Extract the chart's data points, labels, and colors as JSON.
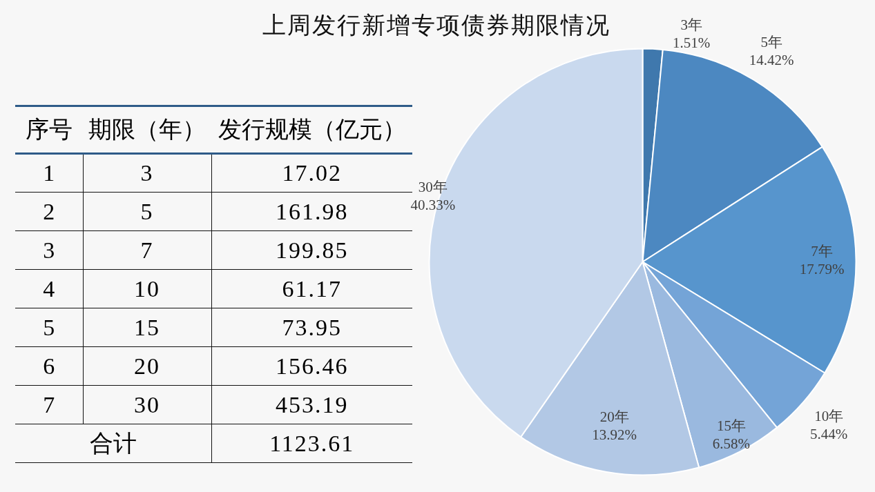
{
  "chart_data": {
    "type": "pie",
    "title": "上周发行新增专项债券期限情况",
    "categories": [
      "3年",
      "5年",
      "7年",
      "10年",
      "15年",
      "20年",
      "30年"
    ],
    "values": [
      1.51,
      14.42,
      17.79,
      5.44,
      6.58,
      13.92,
      40.33
    ],
    "value_labels": [
      "1.51%",
      "14.42%",
      "17.79%",
      "5.44%",
      "6.58%",
      "13.92%",
      "40.33%"
    ],
    "colors": [
      "#3f78ad",
      "#4c88c1",
      "#5795cd",
      "#74a4d7",
      "#9ab9df",
      "#b2c8e5",
      "#c9d9ee"
    ],
    "annotations": [
      "序号",
      "期限（年）",
      "发行规模（亿元）",
      "1",
      "3",
      "17.02",
      "2",
      "5",
      "161.98",
      "3",
      "7",
      "199.85",
      "4",
      "10",
      "61.17",
      "5",
      "15",
      "73.95",
      "6",
      "20",
      "156.46",
      "7",
      "30",
      "453.19",
      "合计",
      "1123.61"
    ]
  }
}
